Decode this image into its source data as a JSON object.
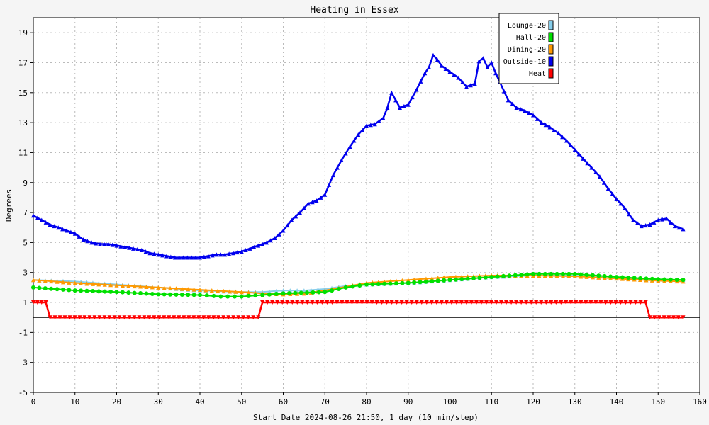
{
  "chart_data": {
    "type": "line",
    "title": "Heating in Essex",
    "xlabel": "Start Date 2024-08-26 21:50, 1 day (10 min/step)",
    "ylabel": "Degrees",
    "xlim": [
      0,
      160
    ],
    "ylim": [
      -5,
      20
    ],
    "x_ticks": [
      0,
      10,
      20,
      30,
      40,
      50,
      60,
      70,
      80,
      90,
      100,
      110,
      120,
      130,
      140,
      150,
      160
    ],
    "y_ticks": [
      -5,
      -3,
      -1,
      1,
      3,
      5,
      7,
      9,
      11,
      13,
      15,
      17,
      19
    ],
    "grid": true,
    "legend_position": "top-right",
    "series": [
      {
        "name": "Lounge-20",
        "color": "#87ceeb",
        "marker": "triangle-up",
        "points": [
          [
            0,
            2.5
          ],
          [
            10,
            2.4
          ],
          [
            20,
            2.2
          ],
          [
            30,
            2.0
          ],
          [
            40,
            1.8
          ],
          [
            50,
            1.7
          ],
          [
            55,
            1.7
          ],
          [
            60,
            1.8
          ],
          [
            65,
            1.8
          ],
          [
            70,
            1.9
          ],
          [
            75,
            2.1
          ],
          [
            80,
            2.2
          ],
          [
            90,
            2.3
          ],
          [
            100,
            2.5
          ],
          [
            110,
            2.7
          ],
          [
            120,
            2.8
          ],
          [
            130,
            2.8
          ],
          [
            140,
            2.6
          ],
          [
            150,
            2.5
          ],
          [
            156,
            2.5
          ]
        ]
      },
      {
        "name": "Hall-20",
        "color": "#00e000",
        "marker": "circle",
        "points": [
          [
            0,
            2.0
          ],
          [
            10,
            1.8
          ],
          [
            20,
            1.7
          ],
          [
            30,
            1.55
          ],
          [
            40,
            1.5
          ],
          [
            45,
            1.4
          ],
          [
            50,
            1.4
          ],
          [
            55,
            1.5
          ],
          [
            60,
            1.6
          ],
          [
            70,
            1.7
          ],
          [
            75,
            2.0
          ],
          [
            80,
            2.2
          ],
          [
            90,
            2.3
          ],
          [
            100,
            2.5
          ],
          [
            110,
            2.7
          ],
          [
            120,
            2.9
          ],
          [
            130,
            2.9
          ],
          [
            140,
            2.7
          ],
          [
            150,
            2.55
          ],
          [
            156,
            2.5
          ]
        ]
      },
      {
        "name": "Dining-20",
        "color": "#ff9900",
        "marker": "triangle-up",
        "points": [
          [
            0,
            2.5
          ],
          [
            10,
            2.3
          ],
          [
            20,
            2.15
          ],
          [
            30,
            2.0
          ],
          [
            40,
            1.85
          ],
          [
            50,
            1.7
          ],
          [
            55,
            1.6
          ],
          [
            60,
            1.55
          ],
          [
            65,
            1.6
          ],
          [
            70,
            1.8
          ],
          [
            75,
            2.05
          ],
          [
            80,
            2.3
          ],
          [
            90,
            2.5
          ],
          [
            100,
            2.7
          ],
          [
            110,
            2.8
          ],
          [
            120,
            2.8
          ],
          [
            130,
            2.75
          ],
          [
            140,
            2.6
          ],
          [
            150,
            2.45
          ],
          [
            156,
            2.4
          ]
        ]
      },
      {
        "name": "Outside-10",
        "color": "#0000ee",
        "marker": "triangle-up",
        "points": [
          [
            0,
            6.8
          ],
          [
            2,
            6.5
          ],
          [
            4,
            6.2
          ],
          [
            6,
            6.0
          ],
          [
            8,
            5.8
          ],
          [
            10,
            5.6
          ],
          [
            12,
            5.2
          ],
          [
            14,
            5.0
          ],
          [
            16,
            4.9
          ],
          [
            18,
            4.9
          ],
          [
            20,
            4.8
          ],
          [
            22,
            4.7
          ],
          [
            24,
            4.6
          ],
          [
            26,
            4.5
          ],
          [
            28,
            4.3
          ],
          [
            30,
            4.2
          ],
          [
            32,
            4.1
          ],
          [
            34,
            4.0
          ],
          [
            36,
            4.0
          ],
          [
            38,
            4.0
          ],
          [
            40,
            4.0
          ],
          [
            42,
            4.1
          ],
          [
            44,
            4.2
          ],
          [
            46,
            4.2
          ],
          [
            48,
            4.3
          ],
          [
            50,
            4.4
          ],
          [
            52,
            4.6
          ],
          [
            54,
            4.8
          ],
          [
            56,
            5.0
          ],
          [
            58,
            5.3
          ],
          [
            60,
            5.8
          ],
          [
            62,
            6.5
          ],
          [
            64,
            7.0
          ],
          [
            66,
            7.6
          ],
          [
            68,
            7.8
          ],
          [
            70,
            8.2
          ],
          [
            72,
            9.5
          ],
          [
            74,
            10.5
          ],
          [
            76,
            11.4
          ],
          [
            78,
            12.2
          ],
          [
            80,
            12.8
          ],
          [
            82,
            12.9
          ],
          [
            84,
            13.3
          ],
          [
            85,
            14.0
          ],
          [
            86,
            15.0
          ],
          [
            87,
            14.5
          ],
          [
            88,
            14.0
          ],
          [
            90,
            14.2
          ],
          [
            92,
            15.2
          ],
          [
            94,
            16.3
          ],
          [
            95,
            16.7
          ],
          [
            96,
            17.5
          ],
          [
            97,
            17.2
          ],
          [
            98,
            16.8
          ],
          [
            100,
            16.4
          ],
          [
            102,
            16.0
          ],
          [
            104,
            15.4
          ],
          [
            106,
            15.6
          ],
          [
            107,
            17.1
          ],
          [
            108,
            17.3
          ],
          [
            109,
            16.7
          ],
          [
            110,
            17.0
          ],
          [
            111,
            16.3
          ],
          [
            112,
            15.7
          ],
          [
            114,
            14.5
          ],
          [
            116,
            14.0
          ],
          [
            118,
            13.8
          ],
          [
            120,
            13.5
          ],
          [
            122,
            13.0
          ],
          [
            124,
            12.7
          ],
          [
            126,
            12.3
          ],
          [
            128,
            11.8
          ],
          [
            130,
            11.2
          ],
          [
            132,
            10.6
          ],
          [
            134,
            10.0
          ],
          [
            136,
            9.4
          ],
          [
            138,
            8.6
          ],
          [
            140,
            7.9
          ],
          [
            142,
            7.3
          ],
          [
            144,
            6.5
          ],
          [
            146,
            6.1
          ],
          [
            148,
            6.2
          ],
          [
            150,
            6.5
          ],
          [
            152,
            6.6
          ],
          [
            154,
            6.1
          ],
          [
            156,
            5.9
          ]
        ]
      },
      {
        "name": "Heat",
        "color": "#ff0000",
        "marker": "triangle-down",
        "points": [
          [
            0,
            1.0
          ],
          [
            3,
            1.0
          ],
          [
            4,
            0.0
          ],
          [
            54,
            0.0
          ],
          [
            55,
            1.0
          ],
          [
            147,
            1.0
          ],
          [
            148,
            0.0
          ],
          [
            156,
            0.0
          ]
        ]
      }
    ]
  }
}
